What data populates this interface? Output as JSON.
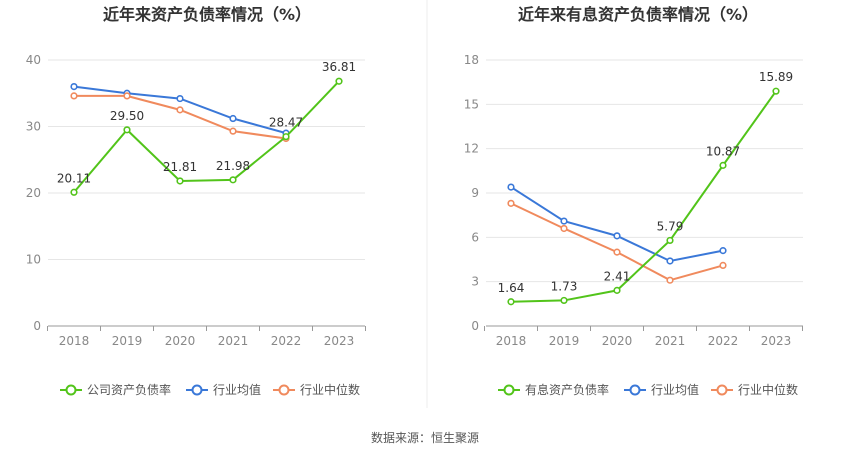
{
  "source": "数据来源：恒生聚源",
  "chart_data": [
    {
      "type": "line",
      "title": "近年来资产负债率情况（%）",
      "categories": [
        "2018",
        "2019",
        "2020",
        "2021",
        "2022",
        "2023"
      ],
      "ylim": [
        0,
        40
      ],
      "yticks": [
        0,
        10,
        20,
        30,
        40
      ],
      "grid": true,
      "legend_position": "bottom",
      "series": [
        {
          "name": "公司资产负债率",
          "color": "#52c41a",
          "values": [
            20.11,
            29.5,
            21.81,
            21.98,
            28.47,
            36.81
          ],
          "labels": [
            "20.11",
            "29.50",
            "21.81",
            "21.98",
            "28.47",
            "36.81"
          ]
        },
        {
          "name": "行业均值",
          "color": "#3a78d8",
          "values": [
            36.0,
            35.0,
            34.2,
            31.2,
            29.0,
            null
          ]
        },
        {
          "name": "行业中位数",
          "color": "#f08a5d",
          "values": [
            34.6,
            34.6,
            32.5,
            29.3,
            28.2,
            null
          ]
        }
      ]
    },
    {
      "type": "line",
      "title": "近年来有息资产负债率情况（%）",
      "categories": [
        "2018",
        "2019",
        "2020",
        "2021",
        "2022",
        "2023"
      ],
      "ylim": [
        0,
        18
      ],
      "yticks": [
        0,
        3,
        6,
        9,
        12,
        15,
        18
      ],
      "grid": true,
      "legend_position": "bottom",
      "series": [
        {
          "name": "有息资产负债率",
          "color": "#52c41a",
          "values": [
            1.64,
            1.73,
            2.41,
            5.79,
            10.87,
            15.89
          ],
          "labels": [
            "1.64",
            "1.73",
            "2.41",
            "5.79",
            "10.87",
            "15.89"
          ]
        },
        {
          "name": "行业均值",
          "color": "#3a78d8",
          "values": [
            9.4,
            7.1,
            6.1,
            4.4,
            5.1,
            null
          ]
        },
        {
          "name": "行业中位数",
          "color": "#f08a5d",
          "values": [
            8.3,
            6.6,
            5.0,
            3.1,
            4.1,
            null
          ]
        }
      ]
    }
  ]
}
